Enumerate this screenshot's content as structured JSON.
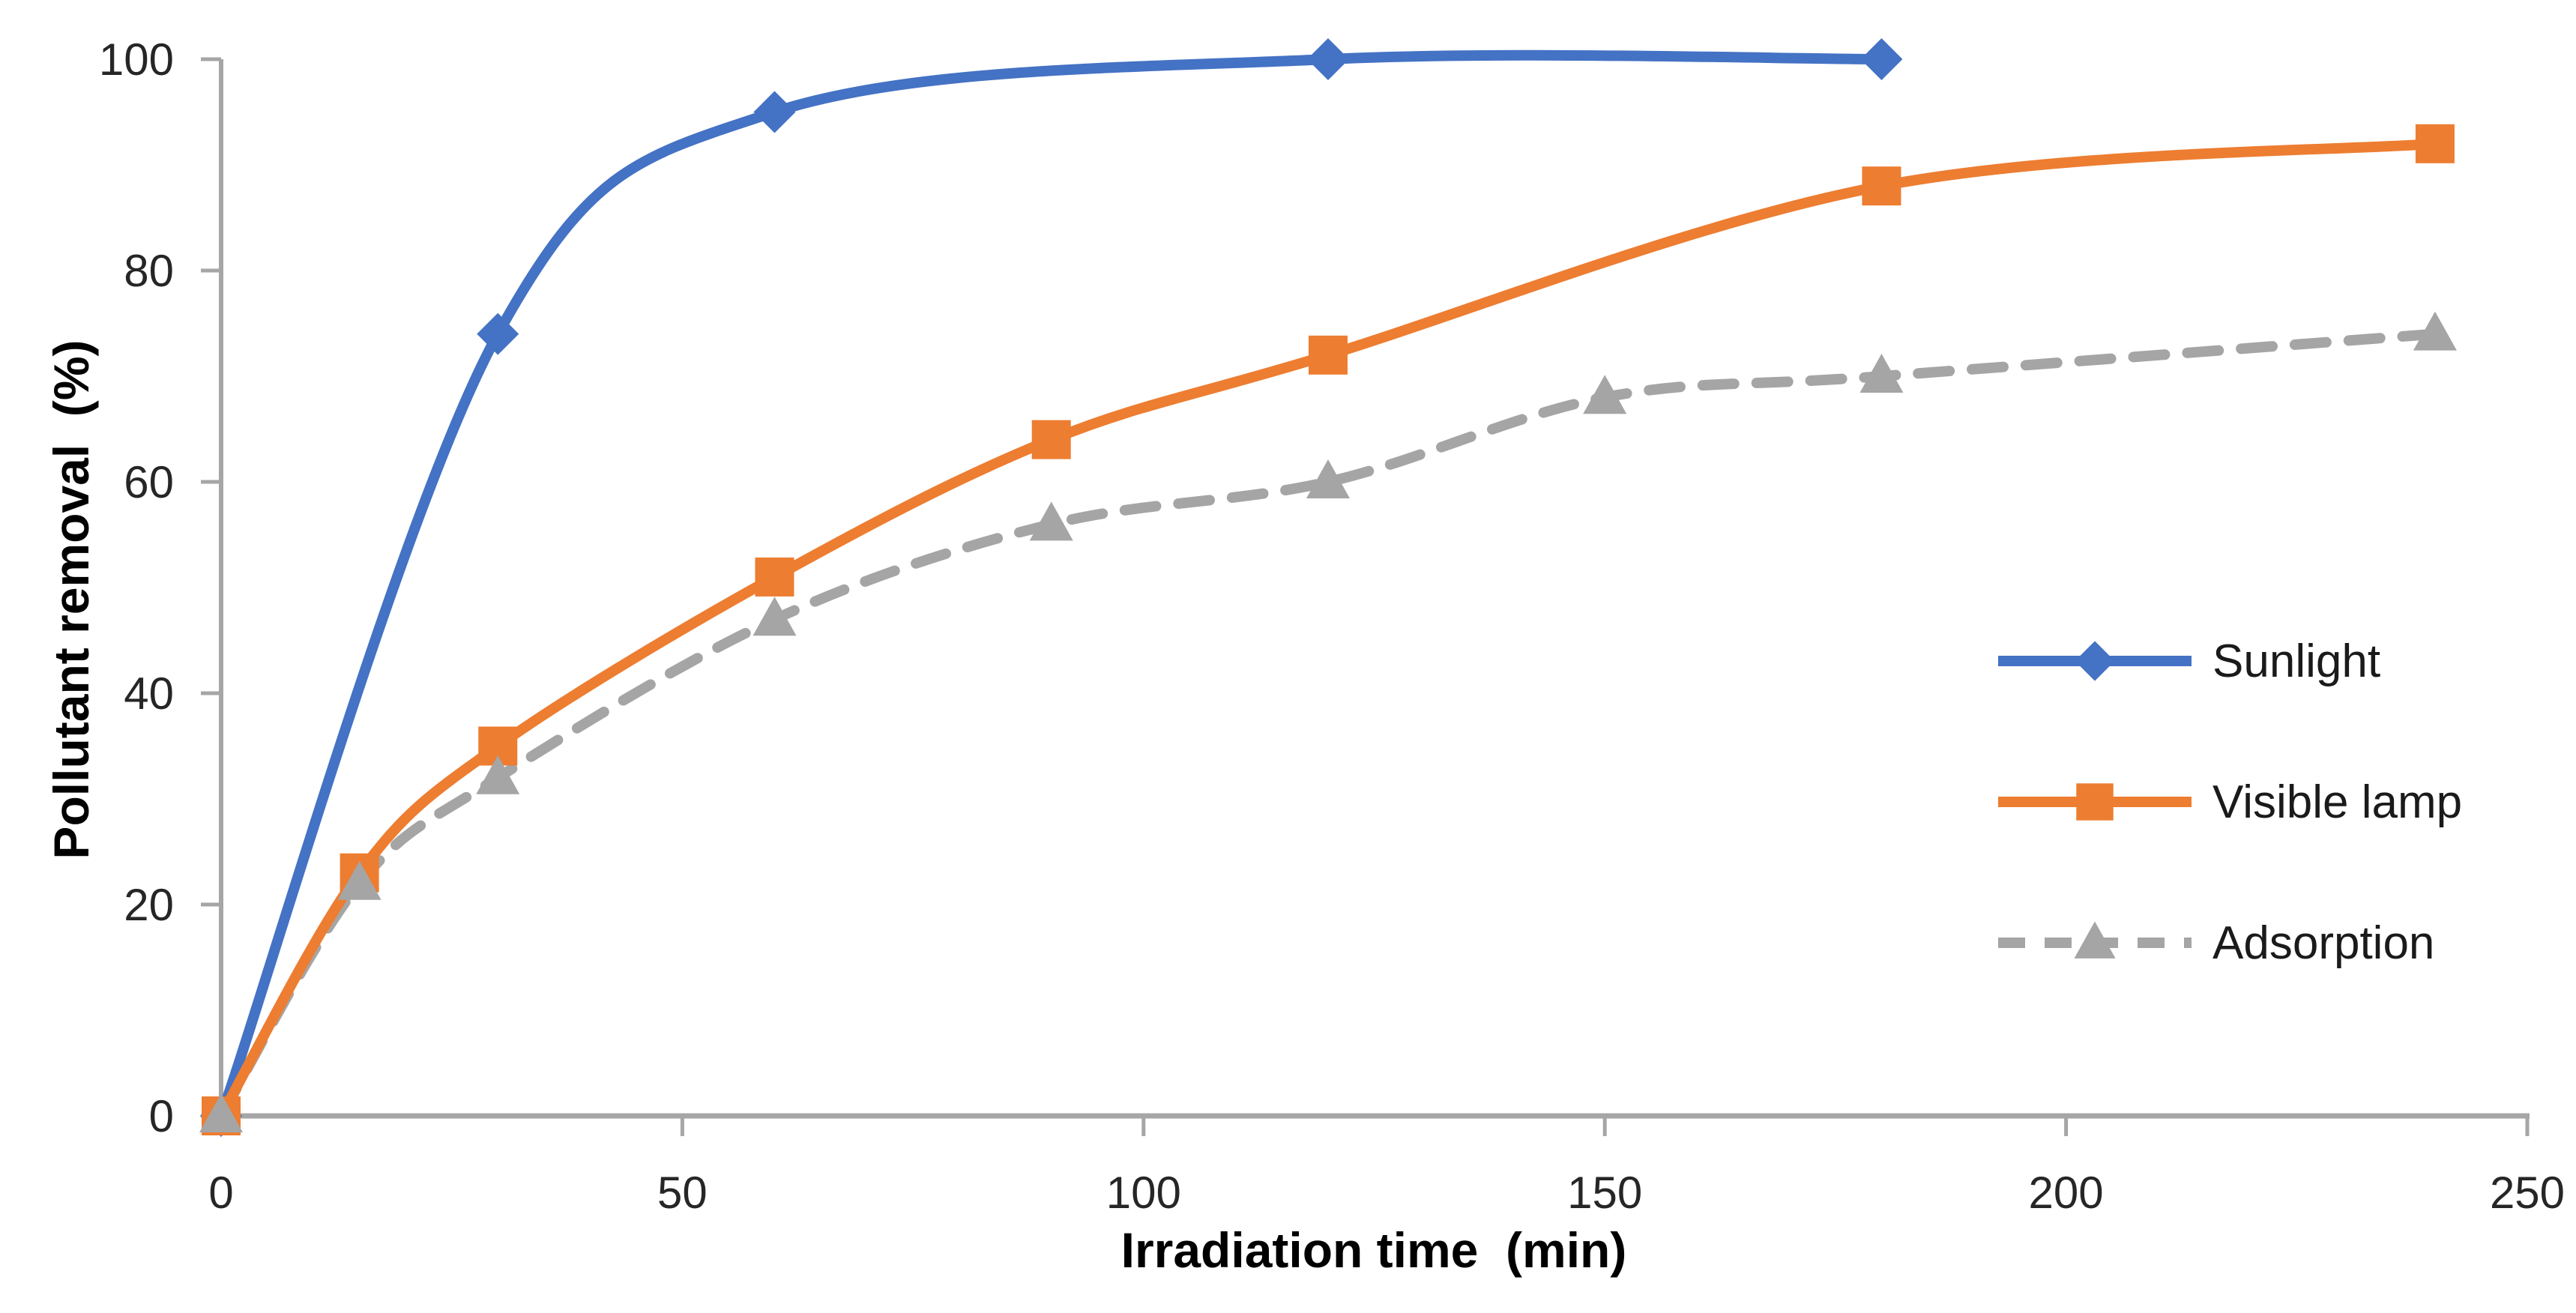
{
  "chart_data": {
    "type": "line",
    "title": "",
    "xlabel": "Irradiation time  (min)",
    "ylabel": "Pollutant removal  (%)",
    "xlim": [
      0,
      250
    ],
    "ylim": [
      0,
      100
    ],
    "x_ticks": [
      0,
      50,
      100,
      150,
      200,
      250
    ],
    "y_ticks": [
      0,
      20,
      40,
      60,
      80,
      100
    ],
    "grid": false,
    "legend_position": "center-right",
    "axis_color": "#a6a6a6",
    "tick_label_color": "#262626",
    "series": [
      {
        "name": "Sunlight",
        "color": "#4472c4",
        "marker": "diamond",
        "line_style": "solid",
        "smooth": true,
        "x": [
          0,
          30,
          60,
          120,
          180
        ],
        "y": [
          0,
          74,
          95,
          100,
          100
        ]
      },
      {
        "name": "Visible lamp",
        "color": "#ed7d31",
        "marker": "square",
        "line_style": "solid",
        "smooth": true,
        "x": [
          0,
          15,
          30,
          60,
          90,
          120,
          180,
          240
        ],
        "y": [
          0,
          23,
          35,
          51,
          64,
          72,
          88,
          92
        ]
      },
      {
        "name": "Adsorption",
        "color": "#a5a5a5",
        "marker": "triangle",
        "line_style": "dashed",
        "smooth": true,
        "x": [
          0,
          15,
          30,
          60,
          90,
          120,
          150,
          180,
          240
        ],
        "y": [
          0,
          22,
          32,
          47,
          56,
          60,
          68,
          70,
          74
        ]
      }
    ]
  }
}
